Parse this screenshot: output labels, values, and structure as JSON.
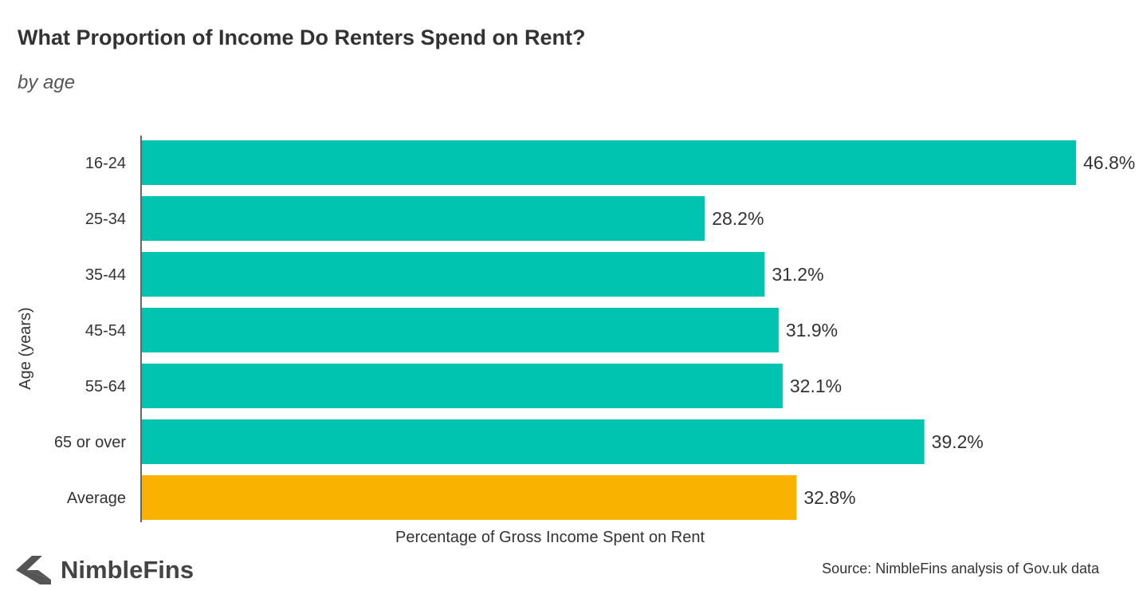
{
  "brand": {
    "name": "NimbleFins"
  },
  "source": "Source: NimbleFins analysis of Gov.uk data",
  "chart_data": {
    "type": "bar",
    "orientation": "horizontal",
    "title": "What Proportion of Income Do Renters Spend on Rent?",
    "subtitle": "by age",
    "xlabel": "Percentage of Gross Income Spent on Rent",
    "ylabel": "Age (years)",
    "categories": [
      "16-24",
      "25-34",
      "35-44",
      "45-54",
      "55-64",
      "65 or over",
      "Average"
    ],
    "values": [
      46.8,
      28.2,
      31.2,
      31.9,
      32.1,
      39.2,
      32.8
    ],
    "data_labels": [
      "46.8%",
      "28.2%",
      "31.2%",
      "31.9%",
      "32.1%",
      "39.2%",
      "32.8%"
    ],
    "colors": [
      "#00c4b0",
      "#00c4b0",
      "#00c4b0",
      "#00c4b0",
      "#00c4b0",
      "#00c4b0",
      "#f9b200"
    ],
    "xlim": [
      0,
      46.8
    ],
    "grid": false,
    "legend": "none"
  }
}
